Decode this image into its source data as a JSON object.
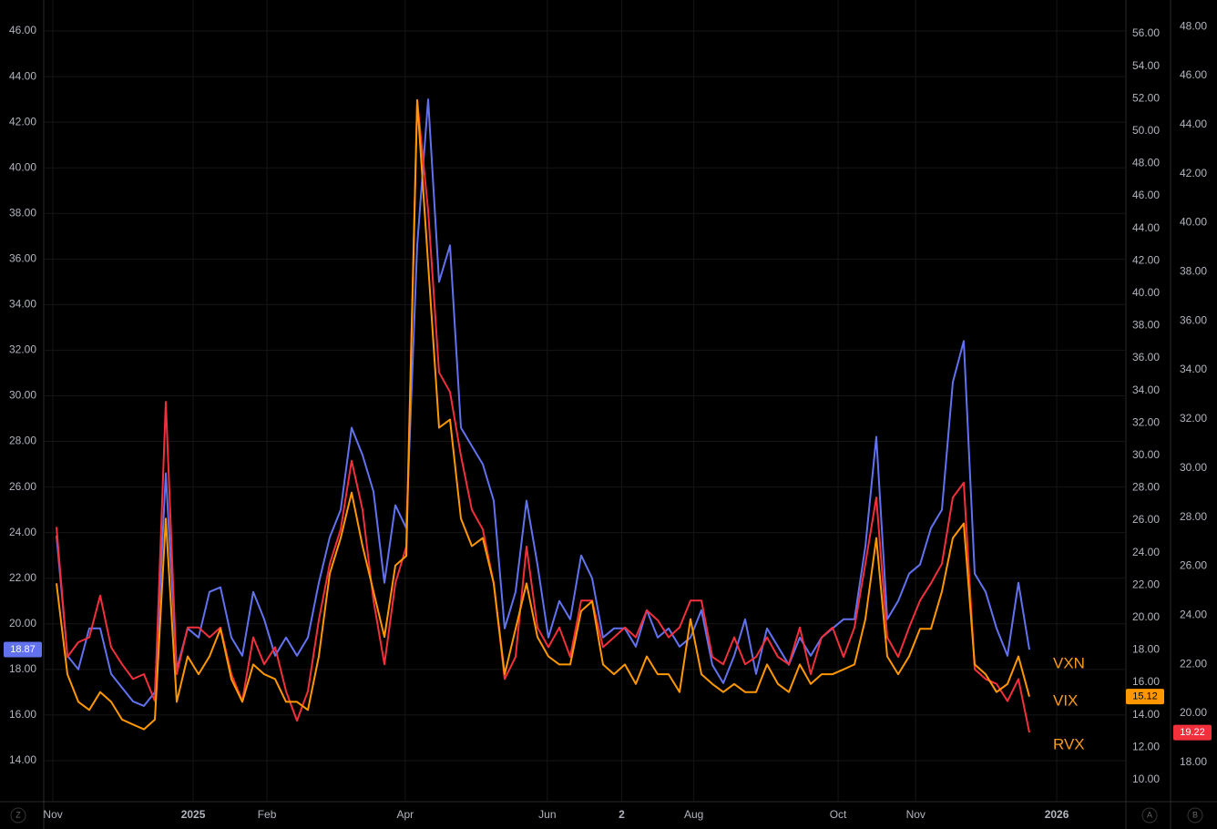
{
  "chart_data": {
    "type": "line",
    "x": [
      0,
      1,
      2,
      3,
      4,
      5,
      6,
      7,
      8,
      9,
      10,
      11,
      12,
      13,
      14,
      15,
      16,
      17,
      18,
      19,
      20,
      21,
      22,
      23,
      24,
      25,
      26,
      27,
      28,
      29,
      30,
      31,
      32,
      33,
      34,
      35,
      36,
      37,
      38,
      39,
      40,
      41,
      42,
      43,
      44,
      45,
      46,
      47,
      48,
      49,
      50,
      51,
      52,
      53,
      54,
      55,
      56,
      57,
      58,
      59,
      60,
      61,
      62,
      63,
      64,
      65,
      66,
      67,
      68,
      69,
      70,
      71,
      72,
      73,
      74,
      75,
      76,
      77,
      78,
      79,
      80,
      81,
      82,
      83,
      84,
      85,
      86,
      87,
      88,
      89
    ],
    "xlim": [
      -1.17,
      97.83
    ],
    "xticks": [
      {
        "value": -0.33,
        "label": "Nov"
      },
      {
        "value": 12.5,
        "label": "2025"
      },
      {
        "value": 19.25,
        "label": "Feb"
      },
      {
        "value": 31.9,
        "label": "Apr"
      },
      {
        "value": 44.9,
        "label": "Jun"
      },
      {
        "value": 51.7,
        "label": "2"
      },
      {
        "value": 58.3,
        "label": "Aug"
      },
      {
        "value": 71.5,
        "label": "Oct"
      },
      {
        "value": 78.6,
        "label": "Nov"
      },
      {
        "value": 91.5,
        "label": "2026"
      }
    ],
    "ylim": [
      12.2,
      47.36
    ],
    "yticks": [
      {
        "value": 14,
        "label": "14.00"
      },
      {
        "value": 16,
        "label": "16.00"
      },
      {
        "value": 18,
        "label": "18.00"
      },
      {
        "value": 20,
        "label": "20.00"
      },
      {
        "value": 22,
        "label": "22.00"
      },
      {
        "value": 24,
        "label": "24.00"
      },
      {
        "value": 26,
        "label": "26.00"
      },
      {
        "value": 28,
        "label": "28.00"
      },
      {
        "value": 30,
        "label": "30.00"
      },
      {
        "value": 32,
        "label": "32.00"
      },
      {
        "value": 34,
        "label": "34.00"
      },
      {
        "value": 36,
        "label": "36.00"
      },
      {
        "value": 38,
        "label": "38.00"
      },
      {
        "value": 40,
        "label": "40.00"
      },
      {
        "value": 42,
        "label": "42.00"
      },
      {
        "value": 44,
        "label": "44.00"
      },
      {
        "value": 46,
        "label": "46.00"
      }
    ],
    "y2lim": [
      8.64,
      58.08
    ],
    "y2ticks": [
      {
        "value": 10,
        "label": "10.00"
      },
      {
        "value": 12,
        "label": "12.00"
      },
      {
        "value": 14,
        "label": "14.00"
      },
      {
        "value": 16,
        "label": "16.00"
      },
      {
        "value": 18,
        "label": "18.00"
      },
      {
        "value": 20,
        "label": "20.00"
      },
      {
        "value": 22,
        "label": "22.00"
      },
      {
        "value": 24,
        "label": "24.00"
      },
      {
        "value": 26,
        "label": "26.00"
      },
      {
        "value": 28,
        "label": "28.00"
      },
      {
        "value": 30,
        "label": "30.00"
      },
      {
        "value": 32,
        "label": "32.00"
      },
      {
        "value": 34,
        "label": "34.00"
      },
      {
        "value": 36,
        "label": "36.00"
      },
      {
        "value": 38,
        "label": "38.00"
      },
      {
        "value": 40,
        "label": "40.00"
      },
      {
        "value": 42,
        "label": "42.00"
      },
      {
        "value": 44,
        "label": "44.00"
      },
      {
        "value": 46,
        "label": "46.00"
      },
      {
        "value": 48,
        "label": "48.00"
      },
      {
        "value": 50,
        "label": "50.00"
      },
      {
        "value": 52,
        "label": "52.00"
      },
      {
        "value": 54,
        "label": "54.00"
      },
      {
        "value": 56,
        "label": "56.00"
      }
    ],
    "y3lim": [
      16.4,
      49.08
    ],
    "y3ticks": [
      {
        "value": 18,
        "label": "18.00"
      },
      {
        "value": 20,
        "label": "20.00"
      },
      {
        "value": 22,
        "label": "22.00"
      },
      {
        "value": 24,
        "label": "24.00"
      },
      {
        "value": 26,
        "label": "26.00"
      },
      {
        "value": 28,
        "label": "28.00"
      },
      {
        "value": 30,
        "label": "30.00"
      },
      {
        "value": 32,
        "label": "32.00"
      },
      {
        "value": 34,
        "label": "34.00"
      },
      {
        "value": 36,
        "label": "36.00"
      },
      {
        "value": 38,
        "label": "38.00"
      },
      {
        "value": 40,
        "label": "40.00"
      },
      {
        "value": 42,
        "label": "42.00"
      },
      {
        "value": 44,
        "label": "44.00"
      },
      {
        "value": 46,
        "label": "46.00"
      },
      {
        "value": 48,
        "label": "48.00"
      }
    ],
    "grid": true,
    "label_color": "#f89c1c",
    "series": [
      {
        "name": "VXN",
        "color": "#6272ef",
        "axis": "y",
        "values": [
          23.87,
          18.6,
          18.0,
          19.8,
          19.8,
          17.8,
          17.2,
          16.6,
          16.4,
          17.0,
          26.6,
          18.0,
          19.8,
          19.4,
          21.4,
          21.6,
          19.4,
          18.6,
          21.4,
          20.2,
          18.6,
          19.4,
          18.6,
          19.4,
          21.8,
          23.8,
          25.0,
          28.6,
          27.4,
          25.8,
          21.8,
          25.2,
          24.2,
          36.6,
          43.0,
          35.0,
          36.6,
          28.6,
          27.8,
          27.0,
          25.4,
          19.8,
          21.4,
          25.4,
          22.6,
          19.4,
          21.0,
          20.2,
          23.0,
          22.0,
          19.4,
          19.8,
          19.8,
          19.0,
          20.6,
          19.4,
          19.8,
          19.0,
          19.4,
          20.6,
          18.2,
          17.4,
          18.6,
          20.2,
          17.8,
          19.8,
          19.0,
          18.2,
          19.4,
          18.6,
          19.4,
          19.8,
          20.2,
          20.2,
          23.4,
          28.2,
          20.2,
          21.0,
          22.2,
          22.6,
          24.2,
          25.0,
          30.6,
          32.4,
          22.2,
          21.4,
          19.8,
          18.6,
          21.8,
          18.87
        ]
      },
      {
        "name": "RVX",
        "color": "#f2303b",
        "axis": "y3",
        "values": [
          27.6,
          22.3,
          22.9,
          23.1,
          24.8,
          22.7,
          22.0,
          21.4,
          21.6,
          20.5,
          32.7,
          21.6,
          23.5,
          23.5,
          23.1,
          23.5,
          21.6,
          20.5,
          23.1,
          22.0,
          22.7,
          20.9,
          19.7,
          20.9,
          23.8,
          26.1,
          27.5,
          30.3,
          28.3,
          24.6,
          22.0,
          25.3,
          26.8,
          45.0,
          40.5,
          33.9,
          33.1,
          30.5,
          28.3,
          27.5,
          25.3,
          21.4,
          22.3,
          26.8,
          23.5,
          22.7,
          23.5,
          22.3,
          24.6,
          24.6,
          22.7,
          23.1,
          23.5,
          23.1,
          24.2,
          23.8,
          23.1,
          23.5,
          24.6,
          24.6,
          22.3,
          22.0,
          23.1,
          22.0,
          22.3,
          23.1,
          22.3,
          22.0,
          23.5,
          21.6,
          23.1,
          23.5,
          22.3,
          23.5,
          26.1,
          28.8,
          23.1,
          22.3,
          23.5,
          24.6,
          25.3,
          26.1,
          28.8,
          29.4,
          21.8,
          21.4,
          21.2,
          20.5,
          21.4,
          19.22
        ]
      },
      {
        "name": "VIX",
        "color": "#ff9800",
        "axis": "y2",
        "values": [
          22.1,
          16.5,
          14.8,
          14.3,
          15.4,
          14.8,
          13.7,
          13.4,
          13.1,
          13.7,
          26.1,
          14.8,
          17.6,
          16.5,
          17.6,
          19.3,
          16.2,
          14.8,
          17.1,
          16.5,
          16.2,
          14.8,
          14.8,
          14.3,
          17.6,
          22.7,
          24.9,
          27.7,
          24.4,
          21.6,
          18.8,
          23.2,
          23.8,
          51.9,
          41.8,
          31.7,
          32.2,
          26.1,
          24.4,
          24.9,
          22.1,
          16.5,
          19.3,
          22.1,
          18.8,
          17.6,
          17.1,
          17.1,
          20.4,
          21.0,
          17.1,
          16.5,
          17.1,
          15.9,
          17.6,
          16.5,
          16.5,
          15.4,
          19.9,
          16.5,
          15.9,
          15.4,
          15.9,
          15.4,
          15.4,
          17.1,
          15.9,
          15.4,
          17.1,
          15.9,
          16.5,
          16.5,
          16.8,
          17.1,
          19.9,
          24.9,
          17.6,
          16.5,
          17.6,
          19.3,
          19.3,
          21.6,
          24.9,
          25.8,
          17.1,
          16.5,
          15.4,
          15.9,
          17.6,
          15.12
        ]
      }
    ]
  },
  "controls": {
    "left": "Z",
    "right": [
      "A",
      "B"
    ]
  }
}
